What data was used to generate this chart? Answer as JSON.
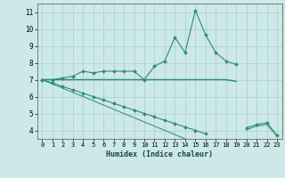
{
  "title": "",
  "xlabel": "Humidex (Indice chaleur)",
  "x": [
    0,
    1,
    2,
    3,
    4,
    5,
    6,
    7,
    8,
    9,
    10,
    11,
    12,
    13,
    14,
    15,
    16,
    17,
    18,
    19,
    20,
    21,
    22,
    23
  ],
  "line1": [
    7.0,
    7.0,
    7.1,
    7.2,
    7.5,
    7.4,
    7.5,
    7.5,
    7.5,
    7.5,
    7.0,
    7.8,
    8.1,
    9.5,
    8.6,
    11.1,
    9.65,
    8.6,
    8.1,
    7.9,
    null,
    null,
    null,
    null
  ],
  "line2": [
    7.0,
    7.0,
    7.0,
    7.0,
    7.0,
    7.0,
    7.0,
    7.0,
    7.0,
    7.0,
    7.0,
    7.0,
    7.0,
    7.0,
    7.0,
    7.0,
    7.0,
    7.0,
    7.0,
    6.9,
    null,
    null,
    null,
    null
  ],
  "line3": [
    7.0,
    6.8,
    6.6,
    6.4,
    6.2,
    6.0,
    5.8,
    5.6,
    5.4,
    5.2,
    5.0,
    4.8,
    4.6,
    4.4,
    4.2,
    4.0,
    3.8,
    null,
    null,
    null,
    4.15,
    4.35,
    4.45,
    3.7
  ],
  "line4": [
    7.0,
    6.75,
    6.5,
    6.25,
    6.0,
    5.75,
    5.5,
    5.25,
    5.0,
    4.75,
    4.5,
    4.25,
    4.0,
    3.75,
    3.5,
    3.25,
    3.0,
    null,
    null,
    null,
    4.05,
    4.25,
    4.35,
    3.65
  ],
  "color": "#2e8b7a",
  "bg_color": "#cce8e8",
  "grid_color": "#aacfcf",
  "ylim": [
    3.5,
    11.5
  ],
  "xlim": [
    -0.5,
    23.5
  ],
  "yticks": [
    4,
    5,
    6,
    7,
    8,
    9,
    10,
    11
  ],
  "xticks": [
    0,
    1,
    2,
    3,
    4,
    5,
    6,
    7,
    8,
    9,
    10,
    11,
    12,
    13,
    14,
    15,
    16,
    17,
    18,
    19,
    20,
    21,
    22,
    23
  ],
  "marker": "D",
  "markersize": 2.0,
  "linewidth": 0.8,
  "xlabel_fontsize": 6.0,
  "tick_fontsize": 5.0
}
